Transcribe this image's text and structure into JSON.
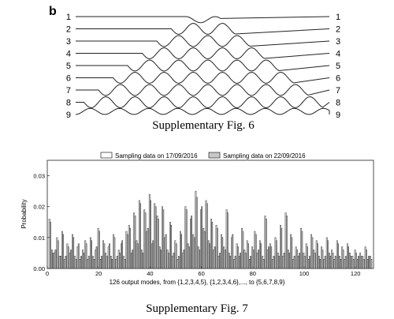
{
  "panel_label": "b",
  "mode_labels": [
    "1",
    "2",
    "3",
    "4",
    "5",
    "6",
    "7",
    "8",
    "9"
  ],
  "fig6_caption": "Supplementary Fig. 6",
  "fig7_caption": "Supplementary Fig. 7",
  "chart_data": {
    "type": "bar",
    "title": "",
    "xlabel": "126 output modes, from {1,2,3,4,5}, {1,2,3,4,6},..., to {5,6,7,8,9}",
    "ylabel": "Probability",
    "xlim": [
      0,
      127
    ],
    "ylim": [
      0,
      0.035
    ],
    "xticks": [
      0,
      20,
      40,
      60,
      80,
      100,
      120
    ],
    "yticks": [
      0.0,
      0.01,
      0.02,
      0.03
    ],
    "ytick_labels": [
      "0.00",
      "0.01",
      "0.02",
      "0.03"
    ],
    "legend_position": "top-center",
    "grid": false,
    "series": [
      {
        "name": "Sampling data on 17/09/2016",
        "fill": "#ffffff",
        "values": [
          0.016,
          0.006,
          0.005,
          0.01,
          0.004,
          0.012,
          0.003,
          0.008,
          0.005,
          0.011,
          0.004,
          0.007,
          0.003,
          0.006,
          0.009,
          0.003,
          0.01,
          0.004,
          0.006,
          0.013,
          0.003,
          0.009,
          0.005,
          0.007,
          0.004,
          0.011,
          0.003,
          0.006,
          0.008,
          0.004,
          0.012,
          0.014,
          0.005,
          0.018,
          0.009,
          0.022,
          0.006,
          0.019,
          0.012,
          0.024,
          0.008,
          0.021,
          0.017,
          0.007,
          0.02,
          0.01,
          0.006,
          0.015,
          0.004,
          0.009,
          0.003,
          0.012,
          0.005,
          0.02,
          0.008,
          0.016,
          0.011,
          0.025,
          0.007,
          0.019,
          0.013,
          0.022,
          0.009,
          0.016,
          0.006,
          0.014,
          0.004,
          0.011,
          0.007,
          0.019,
          0.005,
          0.01,
          0.003,
          0.008,
          0.004,
          0.013,
          0.006,
          0.009,
          0.003,
          0.007,
          0.012,
          0.005,
          0.009,
          0.004,
          0.017,
          0.006,
          0.008,
          0.003,
          0.01,
          0.005,
          0.014,
          0.004,
          0.018,
          0.006,
          0.011,
          0.003,
          0.007,
          0.004,
          0.013,
          0.005,
          0.008,
          0.003,
          0.011,
          0.006,
          0.009,
          0.004,
          0.007,
          0.003,
          0.01,
          0.005,
          0.006,
          0.003,
          0.009,
          0.004,
          0.007,
          0.003,
          0.008,
          0.005,
          0.004,
          0.006,
          0.003,
          0.005,
          0.004,
          0.007,
          0.003,
          0.004
        ]
      },
      {
        "name": "Sampling data on 22/09/2016",
        "fill": "#c8c8c8",
        "values": [
          0.015,
          0.005,
          0.006,
          0.009,
          0.004,
          0.011,
          0.004,
          0.007,
          0.006,
          0.01,
          0.003,
          0.008,
          0.004,
          0.005,
          0.008,
          0.004,
          0.009,
          0.003,
          0.007,
          0.012,
          0.004,
          0.008,
          0.004,
          0.008,
          0.003,
          0.01,
          0.004,
          0.005,
          0.009,
          0.003,
          0.011,
          0.013,
          0.006,
          0.017,
          0.008,
          0.021,
          0.005,
          0.018,
          0.013,
          0.022,
          0.009,
          0.02,
          0.016,
          0.006,
          0.019,
          0.011,
          0.005,
          0.014,
          0.005,
          0.008,
          0.004,
          0.011,
          0.006,
          0.019,
          0.007,
          0.017,
          0.01,
          0.023,
          0.006,
          0.02,
          0.012,
          0.021,
          0.008,
          0.015,
          0.007,
          0.013,
          0.005,
          0.01,
          0.006,
          0.018,
          0.004,
          0.011,
          0.004,
          0.007,
          0.005,
          0.012,
          0.005,
          0.008,
          0.004,
          0.006,
          0.011,
          0.006,
          0.008,
          0.003,
          0.016,
          0.007,
          0.007,
          0.004,
          0.009,
          0.004,
          0.013,
          0.005,
          0.017,
          0.005,
          0.01,
          0.004,
          0.006,
          0.005,
          0.012,
          0.004,
          0.007,
          0.004,
          0.01,
          0.005,
          0.008,
          0.003,
          0.006,
          0.004,
          0.009,
          0.004,
          0.005,
          0.004,
          0.008,
          0.003,
          0.006,
          0.004,
          0.007,
          0.004,
          0.003,
          0.005,
          0.004,
          0.004,
          0.003,
          0.006,
          0.004,
          0.003
        ]
      }
    ]
  }
}
